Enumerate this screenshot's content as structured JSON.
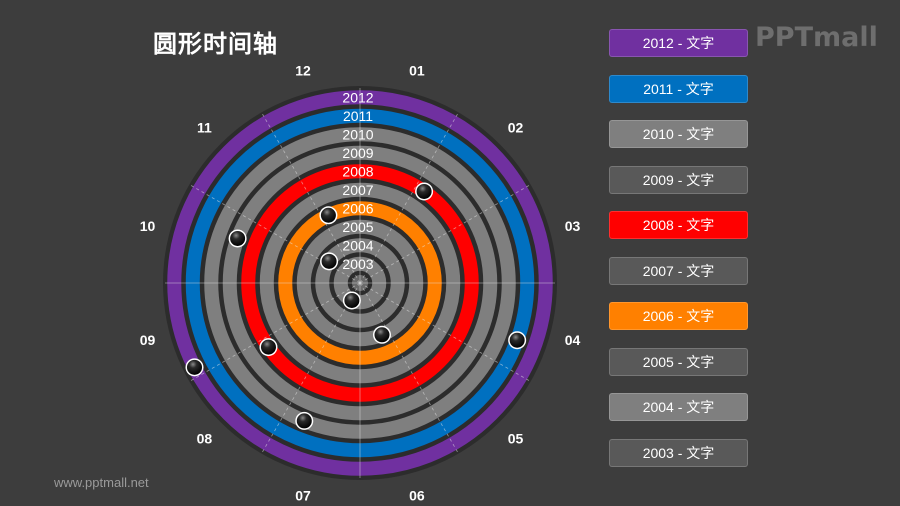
{
  "title": "圆形时间轴",
  "logo": "PPTmall",
  "footer_url": "www.pptmall.net",
  "months": [
    "01",
    "02",
    "03",
    "04",
    "05",
    "06",
    "07",
    "08",
    "09",
    "10",
    "11",
    "12"
  ],
  "rings": [
    {
      "year": "2012",
      "color": "#7030a0"
    },
    {
      "year": "2011",
      "color": "#0070c0"
    },
    {
      "year": "2010",
      "color": "#7f7f7f"
    },
    {
      "year": "2009",
      "color": "#7f7f7f"
    },
    {
      "year": "2008",
      "color": "#ff0000"
    },
    {
      "year": "2007",
      "color": "#7f7f7f"
    },
    {
      "year": "2006",
      "color": "#ff8000"
    },
    {
      "year": "2005",
      "color": "#7f7f7f"
    },
    {
      "year": "2004",
      "color": "#7f7f7f"
    },
    {
      "year": "2003",
      "color": "#7f7f7f"
    }
  ],
  "markers": [
    {
      "year": "2012",
      "angle_deg": 243
    },
    {
      "year": "2011",
      "angle_deg": 110
    },
    {
      "year": "2010",
      "angle_deg": 202
    },
    {
      "year": "2009",
      "angle_deg": 290
    },
    {
      "year": "2008",
      "angle_deg": 35
    },
    {
      "year": "2008",
      "angle_deg": 235
    },
    {
      "year": "2006",
      "angle_deg": 335
    },
    {
      "year": "2005",
      "angle_deg": 157
    },
    {
      "year": "2004",
      "angle_deg": 305
    },
    {
      "year": "2003",
      "angle_deg": 205
    }
  ],
  "legend": [
    {
      "label": "2012 - 文字",
      "color": "#7030a0"
    },
    {
      "label": "2011 - 文字",
      "color": "#0070c0"
    },
    {
      "label": "2010 - 文字",
      "color": "#7f7f7f"
    },
    {
      "label": "2009 - 文字",
      "color": "#595959"
    },
    {
      "label": "2008 - 文字",
      "color": "#ff0000"
    },
    {
      "label": "2007 - 文字",
      "color": "#595959"
    },
    {
      "label": "2006 - 文字",
      "color": "#ff8000"
    },
    {
      "label": "2005 - 文字",
      "color": "#595959"
    },
    {
      "label": "2004 - 文字",
      "color": "#7f7f7f"
    },
    {
      "label": "2003 - 文字",
      "color": "#595959"
    }
  ]
}
